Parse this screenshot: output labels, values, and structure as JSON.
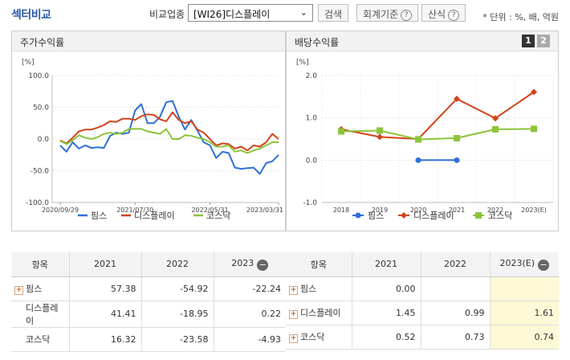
{
  "header": {
    "title": "섹터비교",
    "industry_label": "비교업종",
    "industry_value": "[WI26]디스플레이",
    "search_btn": "검색",
    "accounting_btn": "회계기준",
    "calc_btn": "산식",
    "unit_note": "* 단위 : %, 배, 억원",
    "help_mark": "?",
    "minus_mark": "−"
  },
  "colors": {
    "pims": "#2f6fd6",
    "display": "#d2441a",
    "kosdaq": "#8cc43a"
  },
  "left": {
    "title": "주가수익률",
    "table": {
      "headers": [
        "항목",
        "2021",
        "2022",
        "2023"
      ],
      "rows": [
        {
          "name": "핌스",
          "expand": true,
          "values": [
            "57.38",
            "-54.92",
            "-22.24"
          ]
        },
        {
          "name": "디스플레이",
          "expand": false,
          "values": [
            "41.41",
            "-18.95",
            "0.22"
          ]
        },
        {
          "name": "코스닥",
          "expand": false,
          "values": [
            "16.32",
            "-23.58",
            "-4.93"
          ]
        }
      ]
    }
  },
  "right": {
    "title": "배당수익률",
    "pages": [
      "1",
      "2"
    ],
    "table": {
      "headers": [
        "항목",
        "2021",
        "2022",
        "2023(E)"
      ],
      "rows": [
        {
          "name": "핌스",
          "expand": true,
          "values": [
            "0.00",
            "",
            ""
          ]
        },
        {
          "name": "디스플레이",
          "expand": true,
          "values": [
            "1.45",
            "0.99",
            "1.61"
          ]
        },
        {
          "name": "코스닥",
          "expand": true,
          "values": [
            "0.52",
            "0.73",
            "0.74"
          ]
        }
      ]
    }
  },
  "chart_data": [
    {
      "type": "line",
      "title": "주가수익률",
      "ylabel": "[%]",
      "ylim": [
        -100,
        100
      ],
      "yticks": [
        "100.0",
        "50.0",
        "0.0",
        "-50.0",
        "-100.0"
      ],
      "xticks": [
        "2020/09/29",
        "2021/07/30",
        "2022/05/31",
        "2023/03/31"
      ],
      "series": [
        {
          "name": "핌스",
          "color": "#2f6fd6",
          "values": [
            -10,
            -20,
            -5,
            -15,
            -10,
            -14,
            -13,
            -14,
            5,
            10,
            8,
            10,
            45,
            55,
            25,
            25,
            35,
            58,
            60,
            35,
            15,
            30,
            13,
            -5,
            -10,
            -30,
            -20,
            -22,
            -45,
            -47,
            -46,
            -45,
            -55,
            -38,
            -35,
            -25
          ]
        },
        {
          "name": "디스플레이",
          "color": "#d2441a",
          "values": [
            -2,
            -7,
            2,
            12,
            15,
            15,
            18,
            22,
            28,
            27,
            32,
            32,
            30,
            36,
            39,
            38,
            31,
            28,
            42,
            30,
            25,
            28,
            15,
            10,
            0,
            -10,
            -7,
            -8,
            -15,
            -12,
            -18,
            -10,
            -12,
            -5,
            8,
            0
          ]
        },
        {
          "name": "코스닥",
          "color": "#8cc43a",
          "values": [
            -3,
            -8,
            -2,
            6,
            2,
            0,
            3,
            8,
            10,
            8,
            10,
            16,
            16,
            16,
            12,
            10,
            8,
            16,
            0,
            0,
            6,
            5,
            2,
            0,
            -5,
            -12,
            -12,
            -10,
            -20,
            -18,
            -22,
            -18,
            -15,
            -10,
            -5,
            -5
          ]
        }
      ]
    },
    {
      "type": "line",
      "title": "배당수익률",
      "ylabel": "[%]",
      "ylim": [
        -1,
        2
      ],
      "yticks": [
        "2.0",
        "1.0",
        "0.0",
        "-1.0"
      ],
      "categories": [
        "2018",
        "2019",
        "2020",
        "2021",
        "2022",
        "2023(E)"
      ],
      "series": [
        {
          "name": "핌스",
          "color": "#2f6fd6",
          "marker": "circle",
          "values": [
            null,
            null,
            0.0,
            0.0,
            null,
            null
          ]
        },
        {
          "name": "디스플레이",
          "color": "#d2441a",
          "marker": "diamond",
          "values": [
            0.73,
            0.55,
            0.5,
            1.45,
            0.99,
            1.61
          ]
        },
        {
          "name": "코스닥",
          "color": "#8cc43a",
          "marker": "square",
          "values": [
            0.68,
            0.7,
            0.49,
            0.52,
            0.73,
            0.74
          ]
        }
      ]
    }
  ]
}
